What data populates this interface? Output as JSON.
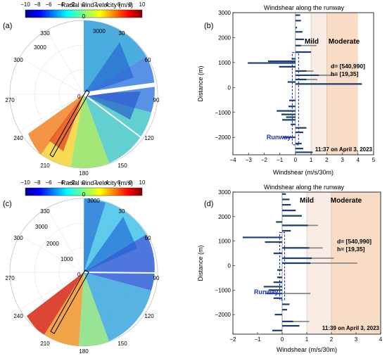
{
  "panels": [
    {
      "label": "(a)",
      "colorbar_title": "Radial wind velocity (m/s)",
      "colorbar_ticks": [
        "−10",
        "−8",
        "−6",
        "−4",
        "−2",
        "0",
        "2",
        "4",
        "6",
        "8",
        "10"
      ],
      "azimuth_labels": [
        "0",
        "30",
        "60",
        "90",
        "120",
        "150",
        "180",
        "210",
        "240",
        "270",
        "300",
        "330"
      ],
      "range_labels": [
        "3000",
        "3000"
      ],
      "center_label": "0"
    },
    {
      "label": "(c)",
      "colorbar_title": "Radial wind velocity (m/s)",
      "colorbar_ticks": [
        "−10",
        "−8",
        "−6",
        "−4",
        "−2",
        "0",
        "2",
        "4",
        "6",
        "8",
        "10"
      ],
      "azimuth_labels": [
        "0",
        "30",
        "60",
        "90",
        "120",
        "150",
        "180",
        "210",
        "240",
        "270",
        "300",
        "330"
      ],
      "range_labels": [
        "3000",
        "3000",
        "2000",
        "1000"
      ],
      "center_label": "0"
    }
  ],
  "chart_data": [
    {
      "type": "bar",
      "orientation": "horizontal",
      "panel": "(b)",
      "title": "Windshear along the runway",
      "xlabel": "Windshear (m/s/30m)",
      "ylabel": "Distance (m)",
      "xlim": [
        -4,
        5
      ],
      "ylim": [
        -2700,
        3000
      ],
      "xticks": [
        "−4",
        "−3",
        "−2",
        "−1",
        "0",
        "1",
        "2",
        "3",
        "4",
        "5"
      ],
      "yticks": [
        "−2000",
        "−1000",
        "0",
        "1000",
        "2000",
        "3000"
      ],
      "zones": [
        {
          "name": "Mild",
          "from": 1.0,
          "to": 2.0,
          "color": "#f8ece4"
        },
        {
          "name": "Moderate",
          "from": 2.0,
          "to": 4.0,
          "color": "#f8dcc6"
        }
      ],
      "runway": {
        "label": "Runway",
        "x": [
          -0.2,
          0.2
        ],
        "y": [
          -2300,
          1400
        ]
      },
      "annotation": [
        "d= [540,990]",
        "h= [19,35]"
      ],
      "timestamp": "11:37 on April 3, 2023",
      "bars": [
        {
          "y": 2900,
          "v": 0.3,
          "gray": 0
        },
        {
          "y": 2680,
          "v": 0.35,
          "gray": 0
        },
        {
          "y": 2400,
          "v": 0.1,
          "gray": 0
        },
        {
          "y": 2230,
          "v": 0.45,
          "gray": 0
        },
        {
          "y": 1930,
          "v": 0.55,
          "gray": 0
        },
        {
          "y": 1680,
          "v": 0.35,
          "gray": 1.35
        },
        {
          "y": 1420,
          "v": 1.0,
          "gray": 0
        },
        {
          "y": 1150,
          "v": -0.25,
          "gray": 0
        },
        {
          "y": 1050,
          "v": -1.75,
          "gray": 0
        },
        {
          "y": 980,
          "v": -3.05,
          "gray": 0
        },
        {
          "y": 830,
          "v": -1.05,
          "gray": 0
        },
        {
          "y": 660,
          "v": 0.7,
          "gray": 1.15
        },
        {
          "y": 490,
          "v": 1.5,
          "gray": 2.7
        },
        {
          "y": 320,
          "v": 0.7,
          "gray": 1.4
        },
        {
          "y": 220,
          "v": -0.5,
          "gray": 0
        },
        {
          "y": 140,
          "v": 4.25,
          "gray": 0
        },
        {
          "y": -520,
          "v": -0.4,
          "gray": 0
        },
        {
          "y": -760,
          "v": -0.45,
          "gray": 0
        },
        {
          "y": -940,
          "v": -1.2,
          "gray": 0
        },
        {
          "y": -1080,
          "v": -0.9,
          "gray": 0
        },
        {
          "y": -1190,
          "v": -0.6,
          "gray": 0
        },
        {
          "y": -1300,
          "v": -0.85,
          "gray": 0
        },
        {
          "y": -1480,
          "v": -0.3,
          "gray": 0
        },
        {
          "y": -1620,
          "v": 0.7,
          "gray": 0
        },
        {
          "y": -1800,
          "v": 0.5,
          "gray": 0
        },
        {
          "y": -2000,
          "v": -0.8,
          "gray": 0
        },
        {
          "y": -2250,
          "v": 0.4,
          "gray": 0
        },
        {
          "y": -2450,
          "v": 0.5,
          "gray": 0
        },
        {
          "y": -2600,
          "v": 1.1,
          "gray": 0
        }
      ]
    },
    {
      "type": "bar",
      "orientation": "horizontal",
      "panel": "(d)",
      "title": "Windshear along the runway",
      "xlabel": "Windshear (m/s/30m)",
      "ylabel": "Distance (m)",
      "xlim": [
        -2,
        4
      ],
      "ylim": [
        -2800,
        3000
      ],
      "xticks": [
        "−2",
        "−1",
        "0",
        "1",
        "2",
        "3",
        "4"
      ],
      "yticks": [
        "−2000",
        "−1000",
        "0",
        "1000",
        "2000",
        "3000"
      ],
      "zones": [
        {
          "name": "Mild",
          "from": 1.0,
          "to": 2.0,
          "color": "#f8ece4"
        },
        {
          "name": "Moderate",
          "from": 2.0,
          "to": 4.0,
          "color": "#f8dcc6"
        }
      ],
      "runway": {
        "label": "Runway",
        "x": [
          -0.1,
          0.1
        ],
        "y": [
          -1400,
          1350
        ]
      },
      "annotation": [
        "d= [540,990]",
        "h= [19,35]"
      ],
      "timestamp": "11:39 on April 3, 2023",
      "bars": [
        {
          "y": 2920,
          "v": 0.15,
          "gray": 0
        },
        {
          "y": 2700,
          "v": 0.3,
          "gray": 0
        },
        {
          "y": 2480,
          "v": 0.35,
          "gray": 0
        },
        {
          "y": 2250,
          "v": 0.55,
          "gray": 0
        },
        {
          "y": 2030,
          "v": 0.8,
          "gray": 0
        },
        {
          "y": 1780,
          "v": -0.25,
          "gray": 0
        },
        {
          "y": 1640,
          "v": 1.05,
          "gray": 1.45
        },
        {
          "y": 1420,
          "v": 0.35,
          "gray": 0
        },
        {
          "y": 1150,
          "v": -1.6,
          "gray": 0
        },
        {
          "y": 960,
          "v": -0.7,
          "gray": 0
        },
        {
          "y": 720,
          "v": 1.1,
          "gray": 1.65
        },
        {
          "y": 500,
          "v": -0.35,
          "gray": 0
        },
        {
          "y": 300,
          "v": 1.2,
          "gray": 2.1
        },
        {
          "y": 100,
          "v": 1.15,
          "gray": 3.05
        },
        {
          "y": -180,
          "v": -0.2,
          "gray": 0
        },
        {
          "y": -480,
          "v": -0.2,
          "gray": 0
        },
        {
          "y": -680,
          "v": -0.35,
          "gray": 0
        },
        {
          "y": -860,
          "v": -0.75,
          "gray": 0
        },
        {
          "y": -1000,
          "v": -0.55,
          "gray": 0
        },
        {
          "y": -1140,
          "v": -0.65,
          "gray": 1.15
        },
        {
          "y": -1330,
          "v": -0.35,
          "gray": 0
        },
        {
          "y": -1580,
          "v": 0.3,
          "gray": 0
        },
        {
          "y": -1800,
          "v": 0.2,
          "gray": 0
        },
        {
          "y": -2000,
          "v": -0.3,
          "gray": 0
        },
        {
          "y": -2280,
          "v": 0.45,
          "gray": 1.1
        },
        {
          "y": -2460,
          "v": 0.7,
          "gray": 0
        },
        {
          "y": -2650,
          "v": -0.4,
          "gray": 0
        }
      ]
    }
  ]
}
